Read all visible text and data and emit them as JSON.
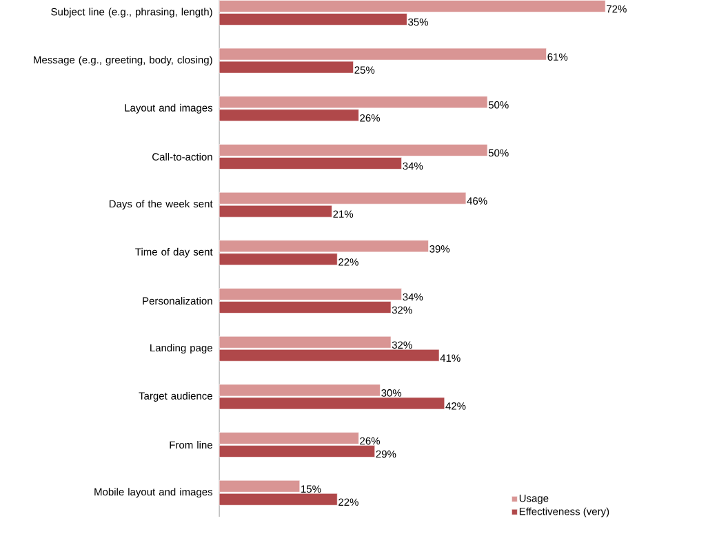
{
  "chart_data": {
    "type": "bar",
    "orientation": "horizontal",
    "tick_labels": "y",
    "legend": "bottom right",
    "categories": [
      "Subject line (e.g., phrasing, length)",
      "Message (e.g., greeting, body, closing)",
      "Layout and images",
      "Call-to-action",
      "Days of the week sent",
      "Time of day sent",
      "Personalization",
      "Landing page",
      "Target audience",
      "From line",
      "Mobile layout and images"
    ],
    "series": [
      {
        "name": "Usage",
        "color": "#d99594",
        "values": [
          72,
          61,
          50,
          50,
          46,
          39,
          34,
          32,
          30,
          26,
          15
        ],
        "value_labels": [
          "72%",
          "61%",
          "50%",
          "50%",
          "46%",
          "39%",
          "34%",
          "32%",
          "30%",
          "26%",
          "15%"
        ]
      },
      {
        "name": "Effectiveness (very)",
        "color": "#b0484a",
        "values": [
          35,
          25,
          26,
          34,
          21,
          22,
          32,
          41,
          42,
          29,
          22
        ],
        "value_labels": [
          "35%",
          "25%",
          "26%",
          "34%",
          "21%",
          "22%",
          "32%",
          "41%",
          "42%",
          "29%",
          "22%"
        ]
      }
    ]
  }
}
